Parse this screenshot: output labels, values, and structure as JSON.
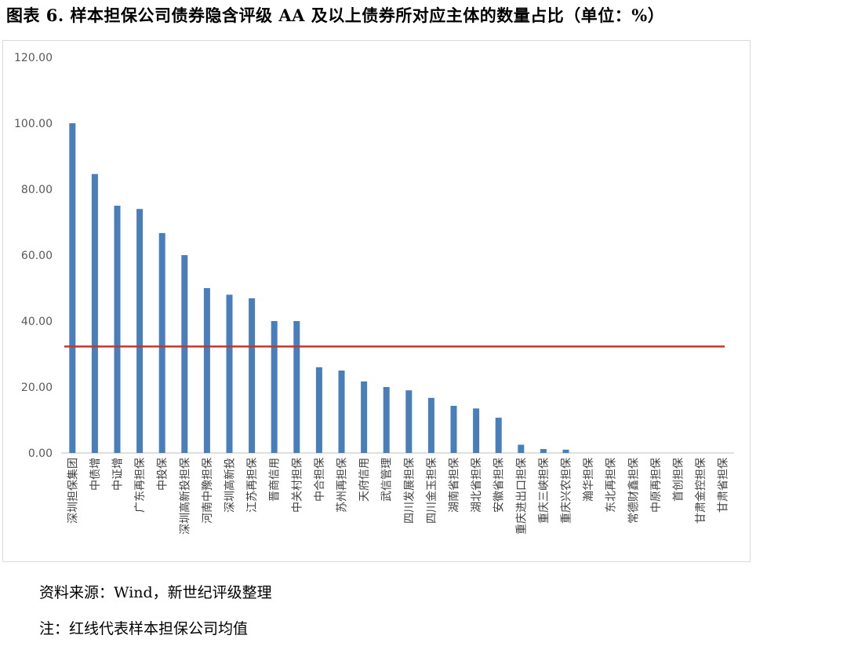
{
  "title": "图表 6. 样本担保公司债券隐含评级 AA 及以上债券所对应主体的数量占比（单位：%）",
  "source": "资料来源：Wind，新世纪评级整理",
  "note": "注：红线代表样本担保公司均值",
  "colors": {
    "bar": "#4a7ebb",
    "average_line": "#c0392b",
    "axis": "#bfbfbf"
  },
  "chart_data": {
    "type": "bar",
    "categories": [
      "深圳担保集团",
      "中债增",
      "中证增",
      "广东再担保",
      "中投保",
      "深圳高新投担保",
      "河南中豫担保",
      "深圳高新投",
      "江苏再担保",
      "晋商信用",
      "中关村担保",
      "中合担保",
      "苏州再担保",
      "天府信用",
      "武信管理",
      "四川发展担保",
      "四川金玉担保",
      "湖南省担保",
      "湖北省担保",
      "安徽省担保",
      "重庆进出口担保",
      "重庆三峡担保",
      "重庆兴农担保",
      "瀚华担保",
      "东北再担保",
      "常德财鑫担保",
      "中原再担保",
      "首创担保",
      "甘肃金控担保",
      "甘肃省担保"
    ],
    "values": [
      100.0,
      84.6,
      75.0,
      74.0,
      66.7,
      60.0,
      50.0,
      48.0,
      46.9,
      40.0,
      40.0,
      26.0,
      25.0,
      21.7,
      20.0,
      19.0,
      16.7,
      14.3,
      13.5,
      10.7,
      2.5,
      1.2,
      1.0,
      0,
      0,
      0,
      0,
      0,
      0,
      0
    ],
    "average": 32.3,
    "ylim": [
      0,
      120
    ],
    "yticks": [
      "0.00",
      "20.00",
      "40.00",
      "60.00",
      "80.00",
      "100.00",
      "120.00"
    ],
    "grid": false,
    "legend": "none"
  }
}
